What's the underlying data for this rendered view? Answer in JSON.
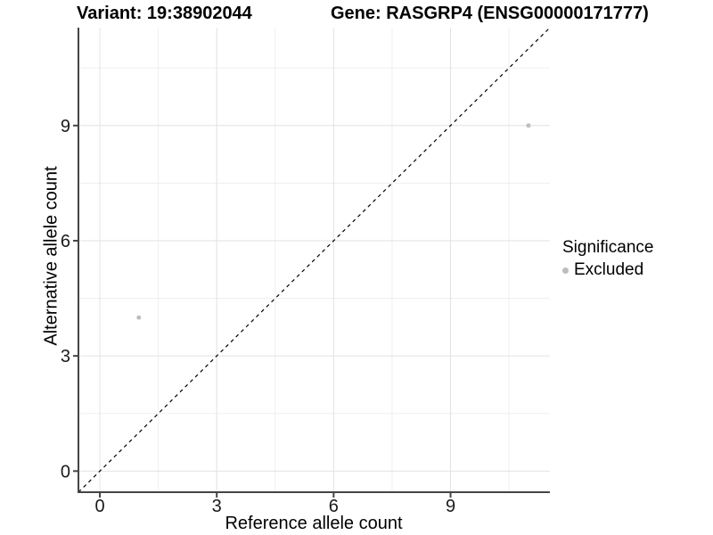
{
  "chart_data": {
    "type": "scatter",
    "titles": {
      "left": "Variant: 19:38902044",
      "right": "Gene: RASGRP4 (ENSG00000171777)"
    },
    "xlabel": "Reference allele count",
    "ylabel": "Alternative allele count",
    "xlim": [
      -0.55,
      11.55
    ],
    "ylim": [
      -0.55,
      11.55
    ],
    "x_major_ticks": [
      0,
      3,
      6,
      9
    ],
    "y_major_ticks": [
      0,
      3,
      6,
      9
    ],
    "x_minor_gridlines": [
      1.5,
      4.5,
      7.5,
      10.5
    ],
    "y_minor_gridlines": [
      1.5,
      4.5,
      7.5,
      10.5
    ],
    "grid": true,
    "series": [
      {
        "name": "Excluded",
        "color": "#bebebe",
        "marker": "circle",
        "points": [
          [
            1,
            4
          ],
          [
            11,
            9
          ]
        ]
      }
    ],
    "reference_line": {
      "type": "identity",
      "slope": 1,
      "intercept": 0,
      "style": "dashed",
      "color": "#000000"
    },
    "legend": {
      "position": "right",
      "title": "Significance",
      "entries": [
        {
          "label": "Excluded",
          "color": "#bebebe",
          "marker": "circle"
        }
      ]
    },
    "colors": {
      "axis_line": "#454545",
      "grid_major": "#e2e2e2",
      "grid_minor": "#efefef",
      "tick_text": "#1a1a1a"
    }
  }
}
